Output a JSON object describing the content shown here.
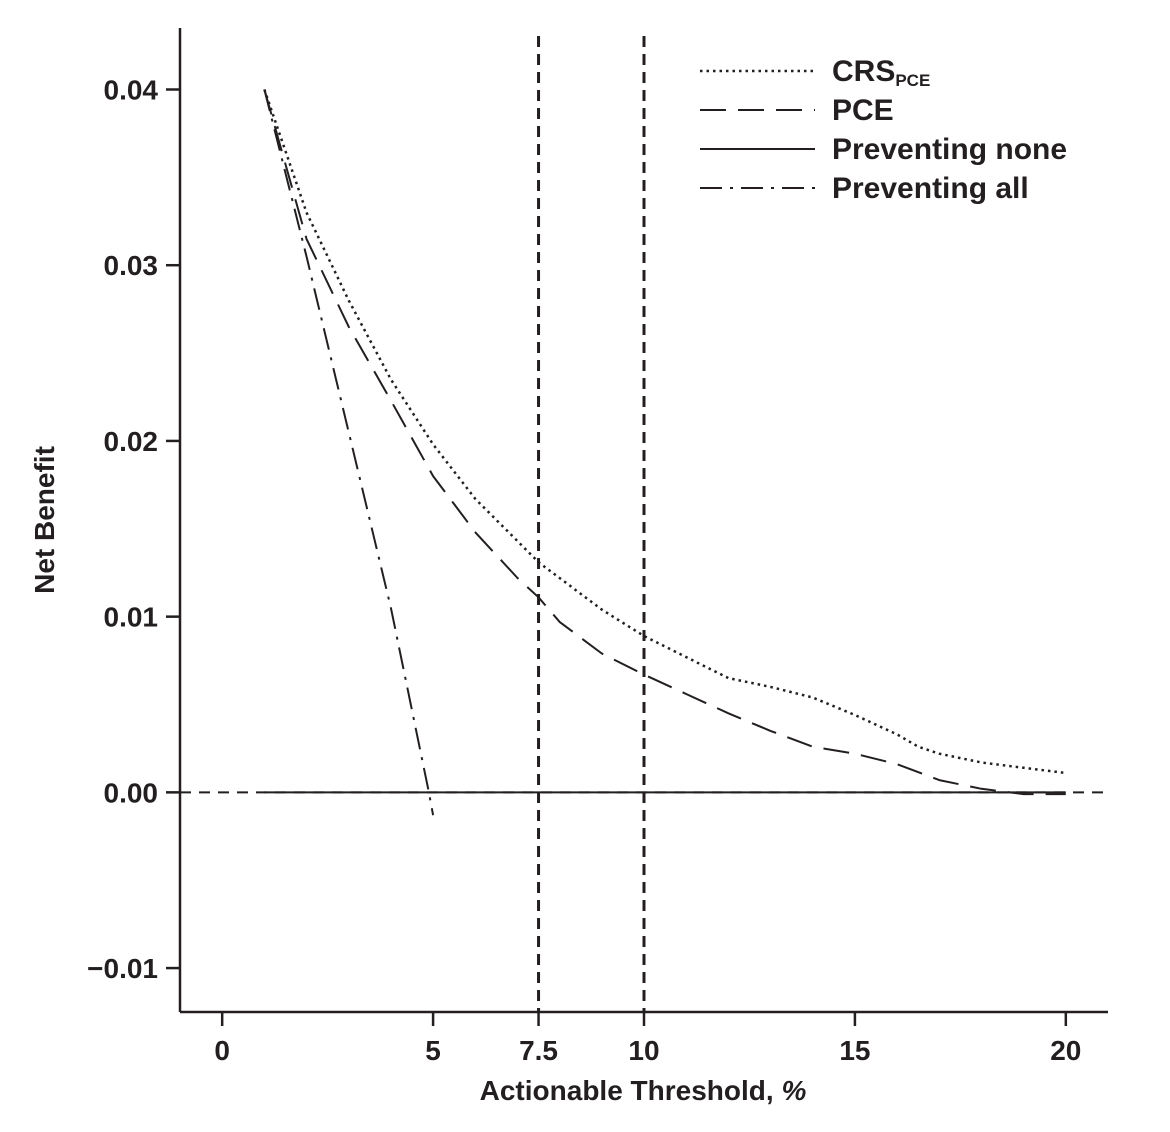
{
  "chart_data": {
    "type": "line",
    "title": "",
    "xlabel_main": "Actionable Threshold, ",
    "xlabel_unit": "%",
    "ylabel": "Net Benefit",
    "xlim": [
      -1,
      21
    ],
    "ylim": [
      -0.0125,
      0.0435
    ],
    "x_ticks": [
      0,
      5,
      7.5,
      10,
      15,
      20
    ],
    "x_tick_labels": [
      "0",
      "5",
      "7.5",
      "10",
      "15",
      "20"
    ],
    "y_ticks": [
      -0.01,
      0,
      0.01,
      0.02,
      0.03,
      0.04
    ],
    "y_tick_labels": [
      "−0.01",
      "0.00",
      "0.01",
      "0.02",
      "0.03",
      "0.04"
    ],
    "reference_lines": {
      "vertical": [
        7.5,
        10
      ],
      "horizontal": [
        0
      ]
    },
    "legend_position": "top-right",
    "series": [
      {
        "name": "CRS",
        "name_sub": "PCE",
        "style": "dotted",
        "x": [
          1,
          2,
          3,
          4,
          5,
          6,
          7,
          7.5,
          8,
          9,
          10,
          11,
          12,
          13,
          14,
          15,
          16,
          16.5,
          17,
          18,
          19,
          20
        ],
        "y": [
          0.04,
          0.033,
          0.028,
          0.0235,
          0.0198,
          0.0167,
          0.0143,
          0.0131,
          0.0122,
          0.0104,
          0.0089,
          0.0077,
          0.0065,
          0.006,
          0.0054,
          0.0044,
          0.0033,
          0.0026,
          0.0022,
          0.0017,
          0.0014,
          0.0011
        ]
      },
      {
        "name": "PCE",
        "style": "dashed",
        "x": [
          1,
          2,
          3,
          4,
          5,
          6,
          7,
          7.5,
          8,
          9,
          10,
          11,
          12,
          13,
          14,
          15,
          16,
          17,
          18,
          19,
          20
        ],
        "y": [
          0.04,
          0.0315,
          0.0265,
          0.0223,
          0.018,
          0.0148,
          0.0122,
          0.0111,
          0.0097,
          0.0079,
          0.0067,
          0.0056,
          0.0045,
          0.0035,
          0.0026,
          0.0022,
          0.0016,
          0.0007,
          0.0002,
          -0.0001,
          -0.0001
        ]
      },
      {
        "name": "Preventing none",
        "style": "solid",
        "x": [
          1,
          20
        ],
        "y": [
          0,
          0
        ]
      },
      {
        "name": "Preventing all",
        "style": "dash-dot",
        "x": [
          1,
          2,
          3,
          4,
          4.9,
          5
        ],
        "y": [
          0.04,
          0.0305,
          0.0205,
          0.0105,
          0.0,
          -0.0013
        ]
      }
    ]
  }
}
